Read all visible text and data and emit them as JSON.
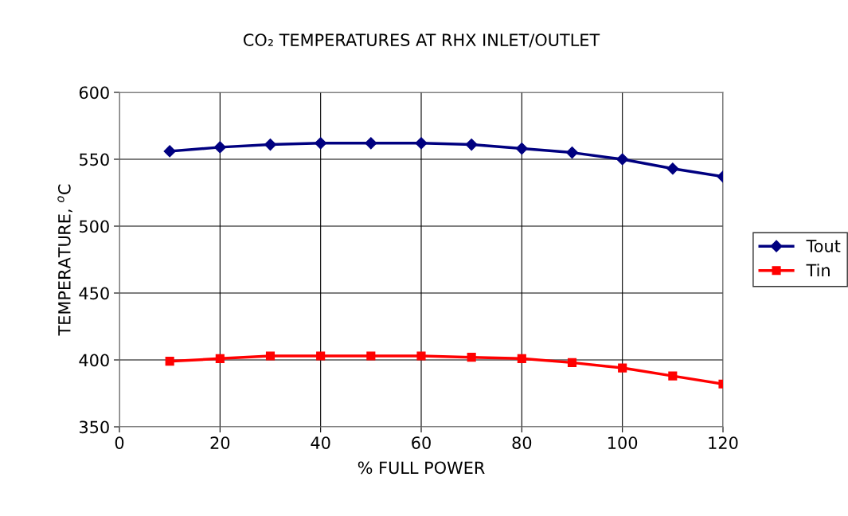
{
  "chart_data": {
    "type": "line",
    "title": "CO₂ TEMPERATURES AT RHX INLET/OUTLET",
    "xlabel": "% FULL POWER",
    "ylabel": "TEMPERATURE, $^{o}$C",
    "x": [
      10,
      20,
      30,
      40,
      50,
      60,
      70,
      80,
      90,
      100,
      110,
      120
    ],
    "series": [
      {
        "name": "Tout",
        "color": "#000080",
        "marker": "diamond",
        "values": [
          556,
          559,
          561,
          562,
          562,
          562,
          561,
          558,
          555,
          550,
          543,
          537
        ]
      },
      {
        "name": "Tin",
        "color": "#ff0000",
        "marker": "square",
        "values": [
          399,
          401,
          403,
          403,
          403,
          403,
          402,
          401,
          398,
          394,
          388,
          382
        ]
      }
    ],
    "xlim": [
      0,
      120
    ],
    "xticks": [
      0,
      20,
      40,
      60,
      80,
      100,
      120
    ],
    "ylim": [
      350,
      600
    ],
    "yticks": [
      350,
      400,
      450,
      500,
      550,
      600
    ],
    "grid": true,
    "legend": "right",
    "line_style": "solid"
  }
}
